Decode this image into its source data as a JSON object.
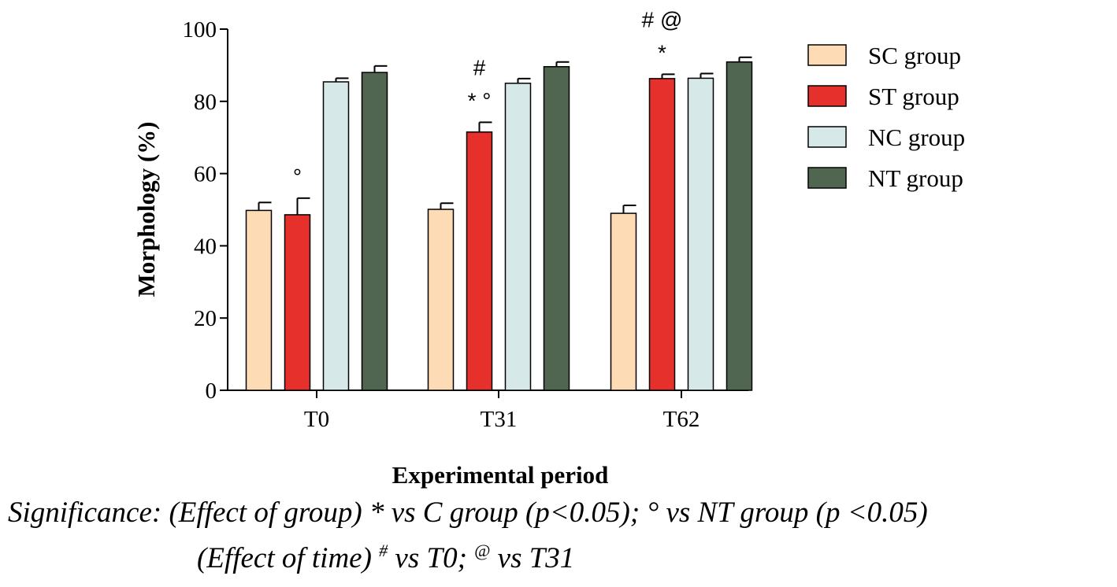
{
  "chart_data": {
    "type": "bar",
    "title": "",
    "xlabel": "Experimental period",
    "ylabel": "Morphology (%)",
    "ylim": [
      0,
      100
    ],
    "yticks": [
      0,
      20,
      40,
      60,
      80,
      100
    ],
    "grid": false,
    "legend_position": "right",
    "categories": [
      "T0",
      "T31",
      "T62"
    ],
    "series": [
      {
        "name": "SC group",
        "color": "#fddcb5",
        "values": [
          49.8,
          50.1,
          49.0
        ],
        "errors": [
          2.2,
          1.7,
          2.2
        ]
      },
      {
        "name": "ST group",
        "color": "#e5302b",
        "values": [
          48.6,
          71.5,
          86.3
        ],
        "errors": [
          4.6,
          2.7,
          1.2
        ]
      },
      {
        "name": "NC group",
        "color": "#d6e8e8",
        "values": [
          85.4,
          85.0,
          86.4
        ],
        "errors": [
          1.0,
          1.3,
          1.3
        ]
      },
      {
        "name": "NT group",
        "color": "#506651",
        "values": [
          88.0,
          89.6,
          90.9
        ],
        "errors": [
          1.8,
          1.3,
          1.3
        ]
      }
    ],
    "annotations": [
      {
        "category": "T0",
        "series": "ST group",
        "lines": [
          "°"
        ]
      },
      {
        "category": "T31",
        "series": "ST group",
        "lines": [
          "#",
          "* °"
        ]
      },
      {
        "category": "T62",
        "series": "ST group",
        "lines": [
          "# @",
          "*"
        ]
      }
    ]
  },
  "caption": {
    "line1": "Significance: (Effect of group) * vs C group (p<0.05); ° vs NT group (p <0.05)",
    "line2_prefix": "(Effect of time) ",
    "line2_sup1": "#",
    "line2_mid": " vs T0; ",
    "line2_sup2": "@",
    "line2_suffix": " vs T31"
  }
}
